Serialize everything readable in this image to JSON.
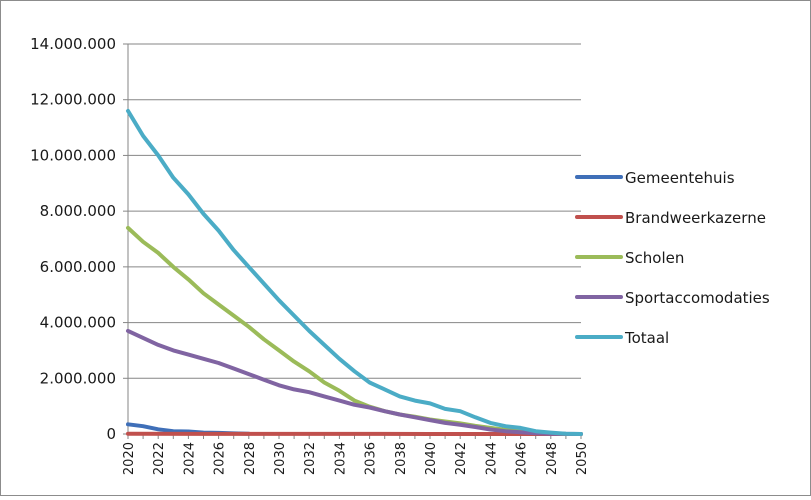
{
  "chart_data": {
    "type": "line",
    "title": "",
    "xlabel": "",
    "ylabel": "",
    "ylim": [
      0,
      14000000
    ],
    "xlim": [
      2020,
      2050
    ],
    "y_ticks": [
      "0",
      "2.000.000",
      "4.000.000",
      "6.000.000",
      "8.000.000",
      "10.000.000",
      "12.000.000",
      "14.000.000"
    ],
    "y_tick_values": [
      0,
      2000000,
      4000000,
      6000000,
      8000000,
      10000000,
      12000000,
      14000000
    ],
    "x_ticks": [
      "2020",
      "2022",
      "2024",
      "2026",
      "2028",
      "2030",
      "2032",
      "2034",
      "2036",
      "2038",
      "2040",
      "2042",
      "2044",
      "2046",
      "2048",
      "2050"
    ],
    "x_tick_values": [
      2020,
      2022,
      2024,
      2026,
      2028,
      2030,
      2032,
      2034,
      2036,
      2038,
      2040,
      2042,
      2044,
      2046,
      2048,
      2050
    ],
    "grid": "horizontal",
    "legend_position": "right",
    "series": [
      {
        "name": "Gemeentehuis",
        "color": "#3f6fb8",
        "x": [
          2020,
          2021,
          2022,
          2023,
          2024,
          2025,
          2026,
          2027,
          2028
        ],
        "y": [
          350000,
          280000,
          170000,
          100000,
          90000,
          50000,
          40000,
          20000,
          10000
        ]
      },
      {
        "name": "Brandweerkazerne",
        "color": "#c0504d",
        "x": [
          2020,
          2025,
          2030,
          2035,
          2040,
          2045,
          2050
        ],
        "y": [
          8000,
          5000,
          3000,
          2000,
          1000,
          500,
          0
        ]
      },
      {
        "name": "Scholen",
        "color": "#9bbb59",
        "x": [
          2020,
          2021,
          2022,
          2023,
          2024,
          2025,
          2026,
          2027,
          2028,
          2029,
          2030,
          2031,
          2032,
          2033,
          2034,
          2035,
          2036,
          2037,
          2038,
          2039,
          2040,
          2041,
          2042,
          2043,
          2044,
          2045,
          2046,
          2047,
          2048,
          2049,
          2050
        ],
        "y": [
          7400000,
          6900000,
          6500000,
          6000000,
          5550000,
          5050000,
          4650000,
          4250000,
          3850000,
          3400000,
          3000000,
          2600000,
          2250000,
          1850000,
          1550000,
          1200000,
          980000,
          820000,
          700000,
          620000,
          520000,
          450000,
          380000,
          290000,
          220000,
          150000,
          90000,
          50000,
          20000,
          5000,
          0
        ]
      },
      {
        "name": "Sportaccomodaties",
        "color": "#8064a2",
        "x": [
          2020,
          2021,
          2022,
          2023,
          2024,
          2025,
          2026,
          2027,
          2028,
          2029,
          2030,
          2031,
          2032,
          2033,
          2034,
          2035,
          2036,
          2037,
          2038,
          2039,
          2040,
          2041,
          2042,
          2043,
          2044,
          2045,
          2046,
          2047,
          2048,
          2049,
          2050
        ],
        "y": [
          3700000,
          3450000,
          3200000,
          3000000,
          2850000,
          2700000,
          2550000,
          2350000,
          2150000,
          1950000,
          1750000,
          1600000,
          1500000,
          1350000,
          1200000,
          1050000,
          950000,
          820000,
          700000,
          600000,
          500000,
          400000,
          330000,
          250000,
          160000,
          100000,
          60000,
          30000,
          10000,
          5000,
          0
        ]
      },
      {
        "name": "Totaal",
        "color": "#4bacc6",
        "x": [
          2020,
          2021,
          2022,
          2023,
          2024,
          2025,
          2026,
          2027,
          2028,
          2029,
          2030,
          2031,
          2032,
          2033,
          2034,
          2035,
          2036,
          2037,
          2038,
          2039,
          2040,
          2041,
          2042,
          2043,
          2044,
          2045,
          2046,
          2047,
          2048,
          2049,
          2050
        ],
        "y": [
          11600000,
          10700000,
          10000000,
          9200000,
          8600000,
          7900000,
          7300000,
          6600000,
          6000000,
          5400000,
          4800000,
          4250000,
          3700000,
          3200000,
          2700000,
          2250000,
          1850000,
          1600000,
          1350000,
          1200000,
          1100000,
          900000,
          820000,
          600000,
          400000,
          280000,
          220000,
          100000,
          50000,
          10000,
          0
        ]
      }
    ]
  }
}
